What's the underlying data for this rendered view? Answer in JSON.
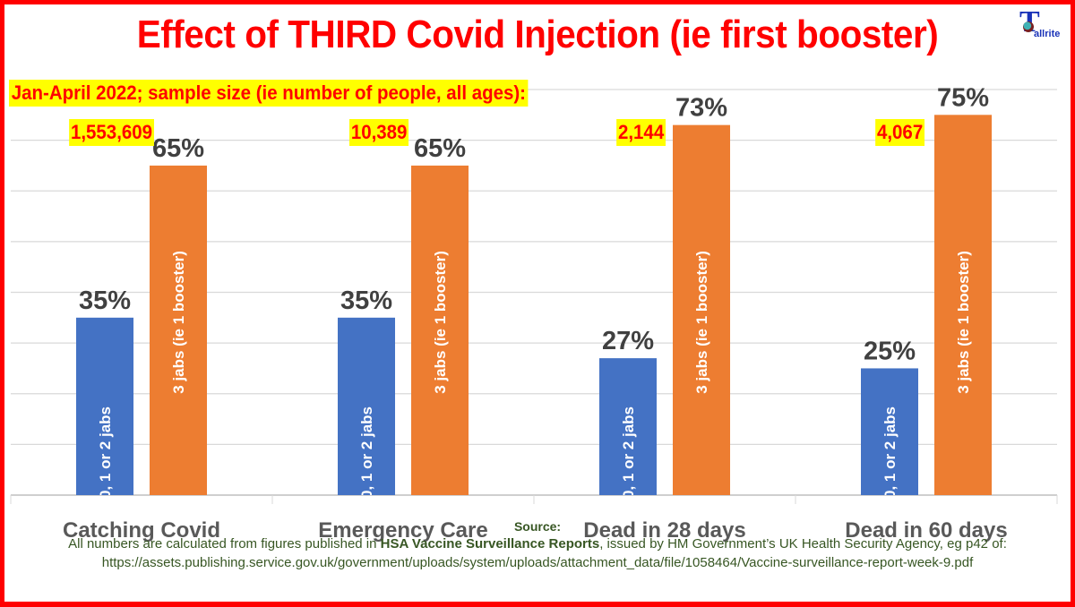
{
  "title": "Effect of THIRD Covid Injection (ie first booster)",
  "logo": {
    "initial": "T",
    "rest": "allrite",
    "icon": "globe-icon"
  },
  "subtitle": "Jan-April 2022; sample size (ie number of people, all ages):",
  "sample_sizes": [
    "1,553,609",
    "10,389",
    "2,144",
    "4,067"
  ],
  "source": {
    "heading": "Source:",
    "line1_prefix": "All numbers are calculated from figures published in ",
    "line1_bold": "HSA Vaccine Surveillance Reports",
    "line1_suffix": ", issued by HM Government’s UK Health Security Agency, eg p42 of:",
    "line2": "https://assets.publishing.service.gov.uk/government/uploads/system/uploads/attachment_data/file/1058464/Vaccine-surveillance-report-week-9.pdf"
  },
  "colors": {
    "frame": "#ff0000",
    "title": "#ff0000",
    "highlight": "#ffff00",
    "series_unboosted": "#4472c4",
    "series_boosted": "#ed7d31",
    "gridline": "#d9d9d9",
    "source_text": "#375623"
  },
  "chart_data": {
    "type": "bar",
    "title": "Effect of THIRD Covid Injection (ie first booster)",
    "xlabel": "",
    "ylabel": "",
    "categories": [
      "Catching Covid",
      "Emergency Care",
      "Dead in 28 days",
      "Dead in 60 days"
    ],
    "series": [
      {
        "name": "0, 1 or 2 jabs",
        "values": [
          35,
          35,
          27,
          25
        ],
        "value_labels": [
          "35%",
          "35%",
          "27%",
          "25%"
        ]
      },
      {
        "name": "3 jabs (ie 1 booster)",
        "values": [
          65,
          65,
          73,
          75
        ],
        "value_labels": [
          "65%",
          "65%",
          "73%",
          "75%"
        ]
      }
    ],
    "ylim": [
      0,
      80
    ],
    "ytick_step": 10,
    "y_axis_labels_shown": false,
    "grid": true,
    "legend": "none (series names written inside bars)",
    "units": "percent"
  }
}
